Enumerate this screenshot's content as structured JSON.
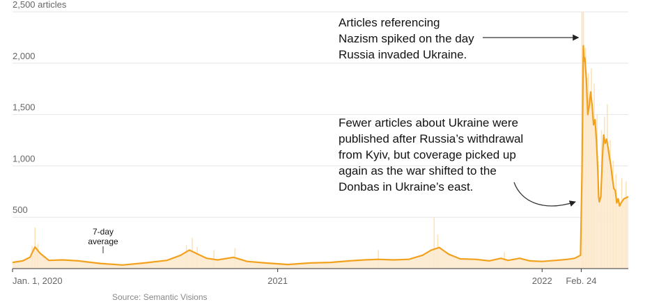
{
  "chart_data": {
    "type": "area",
    "ylabel": "",
    "xlabel": "",
    "ylim": [
      0,
      2500
    ],
    "yticks": [
      {
        "value": 500,
        "label": "500"
      },
      {
        "value": 1000,
        "label": "1,000"
      },
      {
        "value": 1500,
        "label": "1,500"
      },
      {
        "value": 2000,
        "label": "2,000"
      },
      {
        "value": 2500,
        "label": "2,500 articles"
      }
    ],
    "xlim": [
      "2020-01-01",
      "2022-04-30"
    ],
    "xticks": [
      {
        "date": "2020-01-01",
        "label": "Jan. 1, 2020"
      },
      {
        "date": "2021-01-01",
        "label": "2021"
      },
      {
        "date": "2022-01-01",
        "label": "2022"
      },
      {
        "date": "2022-02-24",
        "label": "Feb. 24"
      }
    ],
    "grid": true,
    "series": [
      {
        "name": "7-day average",
        "style": "line",
        "color": "#f2a11d",
        "points": [
          [
            "2020-01-01",
            60
          ],
          [
            "2020-01-15",
            75
          ],
          [
            "2020-01-25",
            110
          ],
          [
            "2020-02-01",
            210
          ],
          [
            "2020-02-08",
            150
          ],
          [
            "2020-02-20",
            80
          ],
          [
            "2020-03-10",
            85
          ],
          [
            "2020-04-01",
            75
          ],
          [
            "2020-05-01",
            50
          ],
          [
            "2020-06-01",
            35
          ],
          [
            "2020-07-01",
            55
          ],
          [
            "2020-08-01",
            80
          ],
          [
            "2020-08-20",
            130
          ],
          [
            "2020-09-01",
            180
          ],
          [
            "2020-09-10",
            150
          ],
          [
            "2020-09-25",
            100
          ],
          [
            "2020-10-10",
            85
          ],
          [
            "2020-11-01",
            110
          ],
          [
            "2020-11-20",
            70
          ],
          [
            "2020-12-15",
            55
          ],
          [
            "2021-01-15",
            40
          ],
          [
            "2021-02-15",
            55
          ],
          [
            "2021-03-15",
            60
          ],
          [
            "2021-04-10",
            75
          ],
          [
            "2021-05-01",
            85
          ],
          [
            "2021-05-20",
            90
          ],
          [
            "2021-06-10",
            85
          ],
          [
            "2021-07-01",
            90
          ],
          [
            "2021-07-20",
            130
          ],
          [
            "2021-08-01",
            180
          ],
          [
            "2021-08-12",
            205
          ],
          [
            "2021-08-25",
            140
          ],
          [
            "2021-09-10",
            95
          ],
          [
            "2021-10-01",
            90
          ],
          [
            "2021-10-20",
            75
          ],
          [
            "2021-11-05",
            100
          ],
          [
            "2021-11-15",
            80
          ],
          [
            "2021-12-01",
            100
          ],
          [
            "2021-12-15",
            75
          ],
          [
            "2022-01-01",
            70
          ],
          [
            "2022-01-20",
            80
          ],
          [
            "2022-02-05",
            90
          ],
          [
            "2022-02-15",
            100
          ],
          [
            "2022-02-23",
            130
          ],
          [
            "2022-02-25",
            900
          ],
          [
            "2022-02-27",
            2170
          ],
          [
            "2022-02-28",
            2020
          ],
          [
            "2022-03-01",
            2050
          ],
          [
            "2022-03-03",
            1850
          ],
          [
            "2022-03-05",
            1500
          ],
          [
            "2022-03-07",
            1580
          ],
          [
            "2022-03-09",
            1720
          ],
          [
            "2022-03-11",
            1590
          ],
          [
            "2022-03-13",
            1400
          ],
          [
            "2022-03-15",
            1450
          ],
          [
            "2022-03-17",
            1250
          ],
          [
            "2022-03-19",
            950
          ],
          [
            "2022-03-20",
            700
          ],
          [
            "2022-03-21",
            650
          ],
          [
            "2022-03-23",
            700
          ],
          [
            "2022-03-25",
            1050
          ],
          [
            "2022-03-27",
            1300
          ],
          [
            "2022-03-29",
            1220
          ],
          [
            "2022-03-31",
            1260
          ],
          [
            "2022-04-02",
            1180
          ],
          [
            "2022-04-04",
            1080
          ],
          [
            "2022-04-06",
            1000
          ],
          [
            "2022-04-08",
            880
          ],
          [
            "2022-04-10",
            780
          ],
          [
            "2022-04-12",
            760
          ],
          [
            "2022-04-14",
            640
          ],
          [
            "2022-04-16",
            680
          ],
          [
            "2022-04-18",
            610
          ],
          [
            "2022-04-20",
            640
          ],
          [
            "2022-04-24",
            680
          ],
          [
            "2022-04-30",
            700
          ]
        ]
      },
      {
        "name": "",
        "style": "daily-spikes",
        "color": "#fde2b8",
        "points": [
          [
            "2020-01-28",
            220
          ],
          [
            "2020-02-01",
            400
          ],
          [
            "2020-02-05",
            240
          ],
          [
            "2020-08-28",
            230
          ],
          [
            "2020-09-05",
            300
          ],
          [
            "2020-09-12",
            210
          ],
          [
            "2020-10-05",
            180
          ],
          [
            "2020-11-03",
            200
          ],
          [
            "2021-05-20",
            180
          ],
          [
            "2021-08-05",
            500
          ],
          [
            "2021-08-10",
            330
          ],
          [
            "2021-11-10",
            160
          ],
          [
            "2022-02-25",
            2500
          ],
          [
            "2022-02-27",
            2500
          ],
          [
            "2022-03-02",
            2150
          ],
          [
            "2022-03-06",
            1900
          ],
          [
            "2022-03-10",
            1950
          ],
          [
            "2022-03-14",
            1800
          ],
          [
            "2022-03-18",
            1500
          ],
          [
            "2022-03-24",
            1350
          ],
          [
            "2022-03-28",
            1480
          ],
          [
            "2022-04-01",
            1600
          ],
          [
            "2022-04-05",
            1250
          ],
          [
            "2022-04-09",
            1050
          ],
          [
            "2022-04-13",
            920
          ],
          [
            "2022-04-21",
            880
          ],
          [
            "2022-04-27",
            850
          ]
        ]
      }
    ],
    "annotations": [
      {
        "lines": [
          "Articles referencing",
          "Nazism spiked on the day",
          "Russia invaded Ukraine."
        ],
        "target": "2022-02-24",
        "arrow": "straight"
      },
      {
        "lines": [
          "Fewer articles about Ukraine were",
          "published after Russia’s withdrawal",
          "from Kyiv, but coverage picked up",
          "again as the war shifted to the",
          "Donbas in Ukraine’s east."
        ],
        "arrow": "curved"
      },
      {
        "lines": [
          "7-day",
          "average"
        ],
        "target": "2020-05-05",
        "arrow": "tick"
      }
    ],
    "source": "Source: Semantic Visions",
    "colors": {
      "line": "#f2a11d",
      "fill": "#fde9cd",
      "spike": "#fde2b8",
      "grid": "#e6e6e6",
      "axis": "#333333",
      "arrow": "#333333"
    }
  }
}
